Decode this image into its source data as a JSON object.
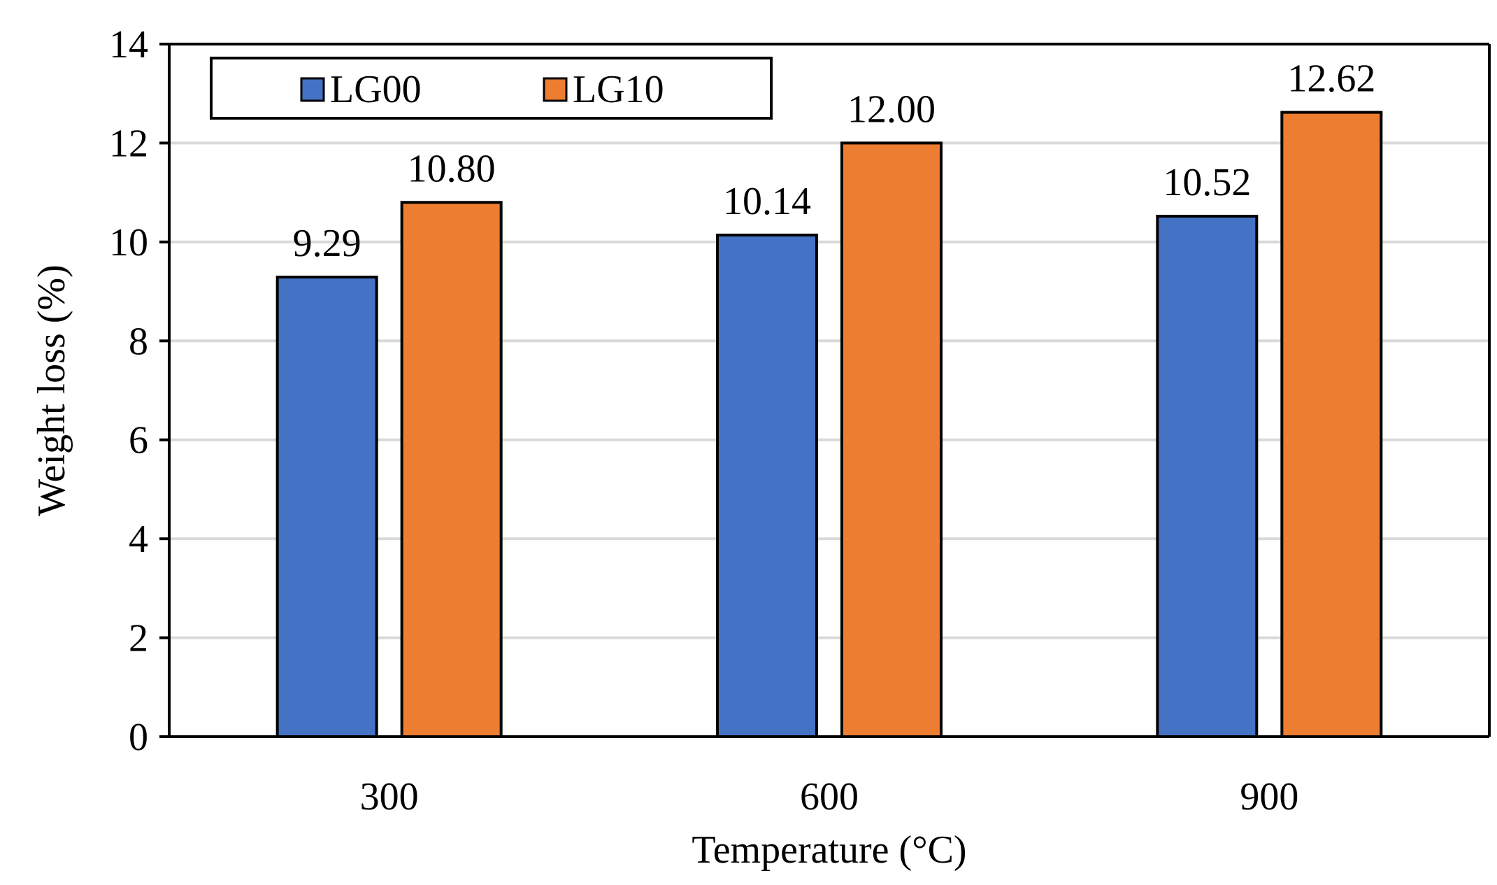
{
  "chart_data": {
    "type": "bar",
    "title": "",
    "xlabel": "Temperature (°C)",
    "ylabel": "Weight loss (%)",
    "categories": [
      "300",
      "600",
      "900"
    ],
    "series": [
      {
        "name": "LG00",
        "color": "#4472C4",
        "values": [
          9.29,
          10.14,
          10.52
        ],
        "labels": [
          "9.29",
          "10.14",
          "10.52"
        ]
      },
      {
        "name": "LG10",
        "color": "#ED7D31",
        "values": [
          10.8,
          12.0,
          12.62
        ],
        "labels": [
          "10.80",
          "12.00",
          "12.62"
        ]
      }
    ],
    "ylim": [
      0,
      14
    ],
    "yticks": [
      "0",
      "2",
      "4",
      "6",
      "8",
      "10",
      "12",
      "14"
    ],
    "grid": true,
    "legend_position": "top-left"
  }
}
